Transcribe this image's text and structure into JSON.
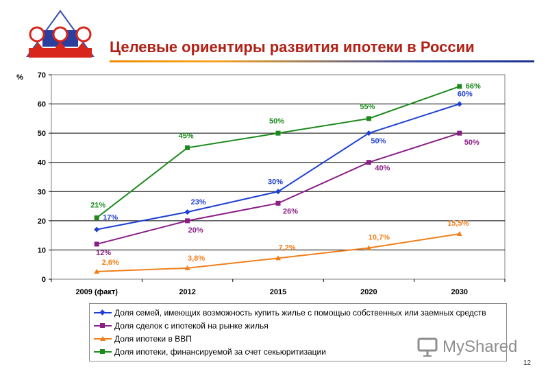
{
  "title": "Целевые ориентиры развития ипотеки в России",
  "watermark": "MyShared",
  "page_number": "12",
  "colors": {
    "title": "#b32015",
    "families": "#1f3fd2",
    "deals": "#8a1f86",
    "gdp": "#f07f1b",
    "securitization": "#1e8a1e"
  },
  "chart_data": {
    "type": "line",
    "ylabel": "%",
    "xlabel": "",
    "ylim": [
      0,
      70
    ],
    "yticks": [
      0,
      10,
      20,
      30,
      40,
      50,
      60,
      70
    ],
    "grid": true,
    "categories": [
      "2009 (факт)",
      "2012",
      "2015",
      "2020",
      "2030"
    ],
    "legend_position": "bottom",
    "series": [
      {
        "key": "families",
        "name": "Доля семей, имеющих возможность купить жилье с помощью собственных или заемных средств",
        "marker": "diamond",
        "values": [
          17,
          23,
          30,
          50,
          60
        ],
        "labels": [
          "17%",
          "23%",
          "30%",
          "50%",
          "60%"
        ]
      },
      {
        "key": "deals",
        "name": "Доля сделок с ипотекой на рынке жилья",
        "marker": "square",
        "values": [
          12,
          20,
          26,
          40,
          50
        ],
        "labels": [
          "12%",
          "20%",
          "26%",
          "40%",
          "50%"
        ]
      },
      {
        "key": "gdp",
        "name": "Доля ипотеки в ВВП",
        "marker": "triangle",
        "values": [
          2.6,
          3.8,
          7.2,
          10.7,
          15.5
        ],
        "labels": [
          "2,6%",
          "3,8%",
          "7,2%",
          "10,7%",
          "15,5%"
        ]
      },
      {
        "key": "securitization",
        "name": "Доля ипотеки, финансируемой за счет секьюритизации",
        "marker": "square",
        "values": [
          21,
          45,
          50,
          55,
          66
        ],
        "labels": [
          "21%",
          "45%",
          "50%",
          "55%",
          "66%"
        ]
      }
    ]
  }
}
